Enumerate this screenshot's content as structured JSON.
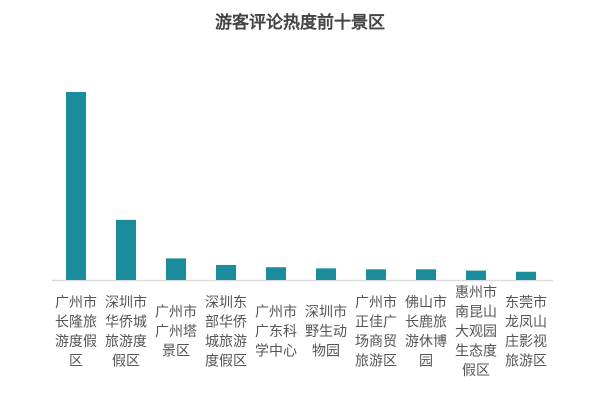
{
  "chart_data": {
    "type": "bar",
    "title": "游客评论热度前十景区",
    "categories": [
      "广州市长隆旅游度假区",
      "深圳市华侨城旅游度假区",
      "广州市广州塔景区",
      "深圳东部华侨城旅游度假区",
      "广州市广东科学中心",
      "深圳市野生动物园",
      "广州市正佳广场商贸旅游区",
      "佛山市长鹿旅游休博园",
      "惠州市南昆山大观园生态度假区",
      "东莞市龙凤山庄影视旅游区"
    ],
    "category_lines": [
      [
        "广州市",
        "长隆旅",
        "游度假",
        "区"
      ],
      [
        "深圳市",
        "华侨城",
        "旅游度",
        "假区"
      ],
      [
        "广州市",
        "广州塔",
        "景区"
      ],
      [
        "深圳东",
        "部华侨",
        "城旅游",
        "度假区"
      ],
      [
        "广州市",
        "广东科",
        "学中心"
      ],
      [
        "深圳市",
        "野生动",
        "物园"
      ],
      [
        "广州市",
        "正佳广",
        "场商贸",
        "旅游区"
      ],
      [
        "佛山市",
        "长鹿旅",
        "游休博",
        "园"
      ],
      [
        "惠州市",
        "南昆山",
        "大观园",
        "生态度",
        "假区"
      ],
      [
        "东莞市",
        "龙凤山",
        "庄影视",
        "旅游区"
      ]
    ],
    "values": [
      100,
      32,
      11.5,
      8,
      6.8,
      6.2,
      5.7,
      5.7,
      5,
      4.4
    ],
    "value_note_hidden": true,
    "ylim": [
      0,
      100
    ],
    "grid": false,
    "legend": "none",
    "bar_color": "#1a8c9c",
    "axis_color": "#d9dde0",
    "label_color": "#555555"
  }
}
